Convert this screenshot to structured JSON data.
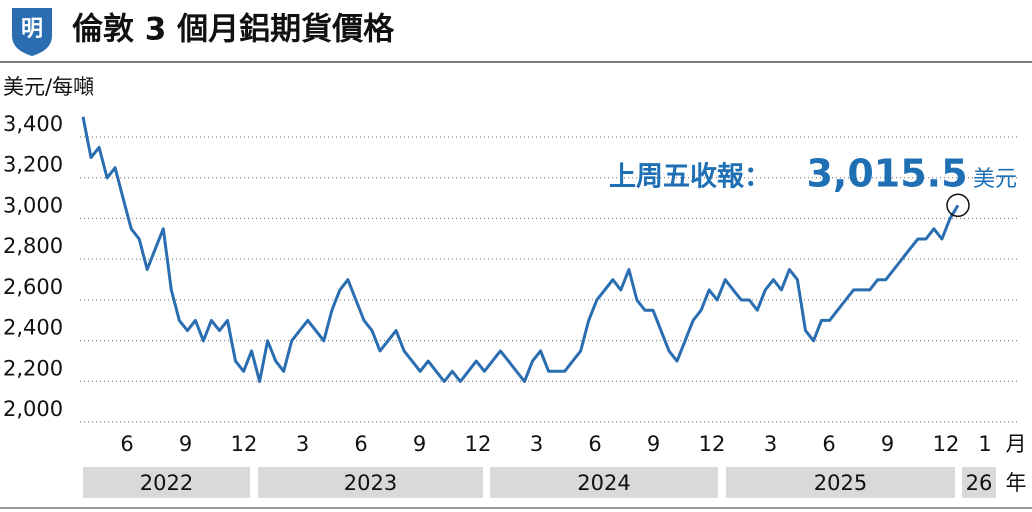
{
  "chart_data": {
    "type": "line",
    "title": "倫敦 3 個月鋁期貨價格",
    "logo": "明",
    "y_label": "美元/每噸",
    "ylim": [
      2000,
      3400
    ],
    "yticks": [
      {
        "value": 2000,
        "label": "2,000"
      },
      {
        "value": 2200,
        "label": "2,200"
      },
      {
        "value": 2400,
        "label": "2,400"
      },
      {
        "value": 2600,
        "label": "2,600"
      },
      {
        "value": 2800,
        "label": "2,800"
      },
      {
        "value": 3000,
        "label": "3,000"
      },
      {
        "value": 3200,
        "label": "3,200"
      },
      {
        "value": 3400,
        "label": "3,400"
      }
    ],
    "grid": true,
    "color": "#2a6db0",
    "months": [
      "6",
      "9",
      "12",
      "3",
      "6",
      "9",
      "12",
      "3",
      "6",
      "9",
      "12",
      "3",
      "6",
      "9",
      "12",
      "1"
    ],
    "month_unit": "月",
    "years": [
      "2022",
      "2023",
      "2024",
      "2025",
      "26"
    ],
    "year_unit": "年",
    "annotation": {
      "text": "上周五收報：",
      "label": "3,015.5",
      "unit": "美元"
    },
    "values": [
      3450,
      3250,
      3300,
      3150,
      3200,
      3050,
      2900,
      2850,
      2700,
      2800,
      2900,
      2600,
      2450,
      2400,
      2450,
      2350,
      2450,
      2400,
      2450,
      2250,
      2200,
      2300,
      2150,
      2350,
      2250,
      2200,
      2350,
      2400,
      2450,
      2400,
      2350,
      2500,
      2600,
      2650,
      2550,
      2450,
      2400,
      2300,
      2350,
      2400,
      2300,
      2250,
      2200,
      2250,
      2200,
      2150,
      2200,
      2150,
      2200,
      2250,
      2200,
      2250,
      2300,
      2250,
      2200,
      2150,
      2250,
      2300,
      2200,
      2200,
      2200,
      2250,
      2300,
      2450,
      2550,
      2600,
      2650,
      2600,
      2700,
      2550,
      2500,
      2500,
      2400,
      2300,
      2250,
      2350,
      2450,
      2500,
      2600,
      2550,
      2650,
      2600,
      2550,
      2550,
      2500,
      2600,
      2650,
      2600,
      2700,
      2650,
      2400,
      2350,
      2450,
      2450,
      2500,
      2550,
      2600,
      2600,
      2600,
      2650,
      2650,
      2700,
      2750,
      2800,
      2850,
      2850,
      2900,
      2850,
      2950,
      3015.5
    ]
  }
}
